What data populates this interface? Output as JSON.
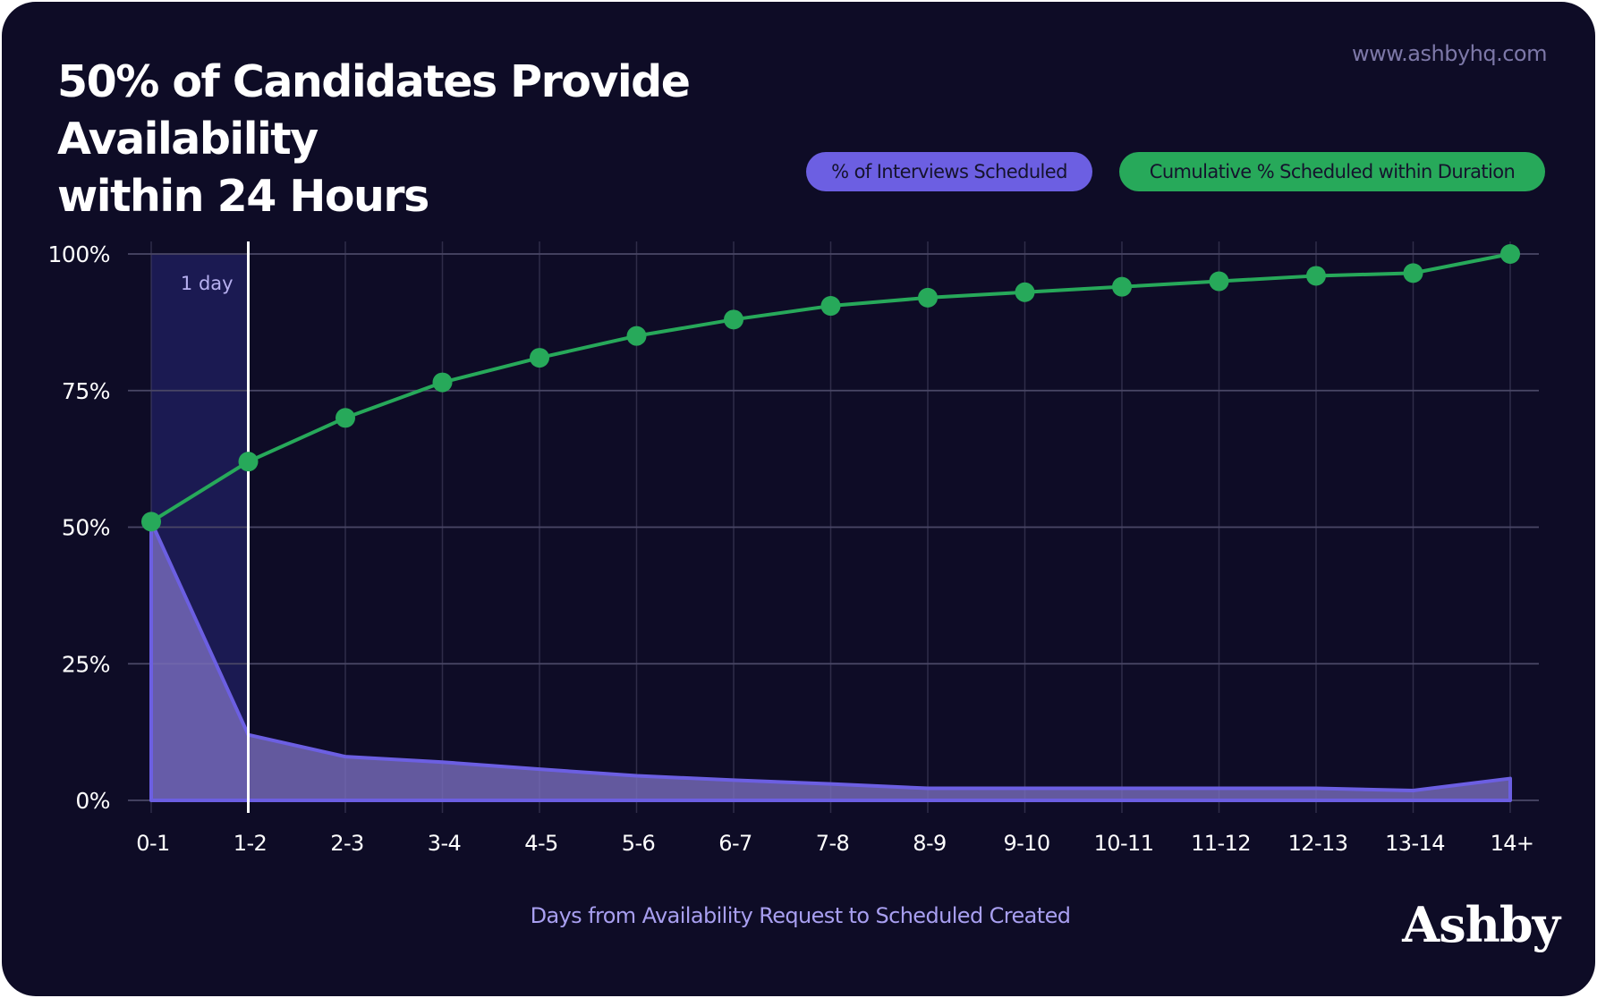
{
  "title_lines": [
    "50% of Candidates Provide Availability",
    "within 24 Hours"
  ],
  "website": "www.ashbyhq.com",
  "logo_text": "Ashby",
  "colors": {
    "background": "#0e0c26",
    "purple": "#6c5fe2",
    "green": "#27a95a",
    "highlight": "#1b1a52",
    "grid": "#4a4766"
  },
  "chart_data": {
    "type": "line",
    "categories": [
      "0-1",
      "1-2",
      "2-3",
      "3-4",
      "4-5",
      "5-6",
      "6-7",
      "7-8",
      "8-9",
      "9-10",
      "10-11",
      "11-12",
      "12-13",
      "13-14",
      "14+"
    ],
    "xlabel": "Days from Availability Request to Scheduled Created",
    "ylim": [
      0,
      100
    ],
    "y_ticks": [
      0,
      25,
      50,
      75,
      100
    ],
    "y_tick_labels": [
      "0%",
      "25%",
      "50%",
      "75%",
      "100%"
    ],
    "grid": true,
    "legend_placement": "top-right",
    "series": [
      {
        "name": "% of Interviews Scheduled",
        "type": "area",
        "color": "#6c5fe2",
        "values": [
          51,
          12,
          8,
          7,
          5.7,
          4.5,
          3.7,
          3,
          2.2,
          2.2,
          2.2,
          2.2,
          2.2,
          1.8,
          4
        ]
      },
      {
        "name": "Cumulative % Scheduled within Duration",
        "type": "line",
        "color": "#27a95a",
        "values": [
          51,
          62,
          70,
          76.5,
          81,
          85,
          88,
          90.5,
          92,
          93,
          94,
          95,
          96,
          96.5,
          100
        ]
      }
    ],
    "annotation": {
      "label": "1 day",
      "from_category": "0-1",
      "to_category": "1-2"
    }
  }
}
